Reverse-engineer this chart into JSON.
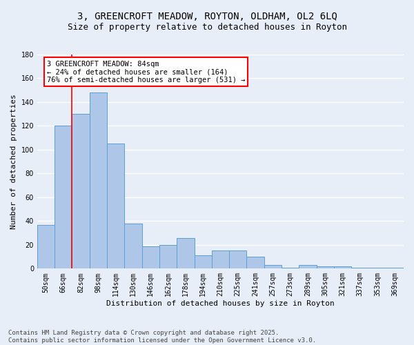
{
  "title_line1": "3, GREENCROFT MEADOW, ROYTON, OLDHAM, OL2 6LQ",
  "title_line2": "Size of property relative to detached houses in Royton",
  "xlabel": "Distribution of detached houses by size in Royton",
  "ylabel": "Number of detached properties",
  "categories": [
    "50sqm",
    "66sqm",
    "82sqm",
    "98sqm",
    "114sqm",
    "130sqm",
    "146sqm",
    "162sqm",
    "178sqm",
    "194sqm",
    "210sqm",
    "225sqm",
    "241sqm",
    "257sqm",
    "273sqm",
    "289sqm",
    "305sqm",
    "321sqm",
    "337sqm",
    "353sqm",
    "369sqm"
  ],
  "values": [
    37,
    120,
    130,
    148,
    105,
    38,
    19,
    20,
    26,
    11,
    15,
    15,
    10,
    3,
    1,
    3,
    2,
    2,
    1,
    1,
    1
  ],
  "bar_color": "#aec6e8",
  "bar_edge_color": "#5a9fd4",
  "annotation_text": "3 GREENCROFT MEADOW: 84sqm\n← 24% of detached houses are smaller (164)\n76% of semi-detached houses are larger (531) →",
  "annotation_box_color": "white",
  "annotation_box_edge_color": "red",
  "vline_color": "red",
  "vline_x": 1.5,
  "background_color": "#e8eef7",
  "grid_color": "white",
  "ylim": [
    0,
    180
  ],
  "yticks": [
    0,
    20,
    40,
    60,
    80,
    100,
    120,
    140,
    160,
    180
  ],
  "footer_line1": "Contains HM Land Registry data © Crown copyright and database right 2025.",
  "footer_line2": "Contains public sector information licensed under the Open Government Licence v3.0.",
  "title_fontsize": 10,
  "subtitle_fontsize": 9,
  "axis_label_fontsize": 8,
  "tick_fontsize": 7,
  "annotation_fontsize": 7.5,
  "footer_fontsize": 6.5
}
